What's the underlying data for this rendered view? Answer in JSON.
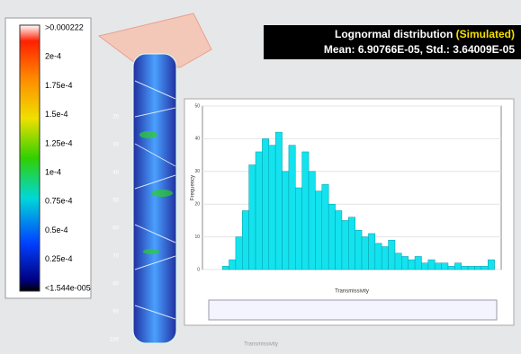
{
  "legend": {
    "labels": [
      ">0.000222",
      "2e-4",
      "1.75e-4",
      "1.5e-4",
      "1.25e-4",
      "1e-4",
      "0.75e-4",
      "0.5e-4",
      "0.25e-4",
      "<1.544e-005"
    ]
  },
  "banner": {
    "title": "Lognormal distribution ",
    "highlight": "(Simulated)",
    "stats": "Mean: 6.90766E-05, Std.: 3.64009E-05"
  },
  "depth_labels": [
    "20",
    "30",
    "40",
    "50",
    "60",
    "70",
    "80",
    "90",
    "100"
  ],
  "footer": "Transmissivity",
  "chart_data": {
    "type": "histogram",
    "x_label": "Transmissivity",
    "y_label": "Frequency",
    "color": "#13e3ee",
    "bins": [
      1.5e-05,
      2e-05,
      2.5e-05,
      3e-05,
      3.5e-05,
      4e-05,
      4.5e-05,
      5e-05,
      5.5e-05,
      6e-05,
      6.5e-05,
      7e-05,
      7.5e-05,
      8e-05,
      8.5e-05,
      9e-05,
      9.5e-05,
      0.0001,
      0.000105,
      0.00011,
      0.000115,
      0.00012,
      0.000125,
      0.00013,
      0.000135,
      0.00014,
      0.000145,
      0.00015,
      0.000155,
      0.00016,
      0.000165,
      0.00017,
      0.000175,
      0.00018,
      0.000185,
      0.00019,
      0.000195,
      0.0002,
      0.000205,
      0.00021,
      0.000215,
      0.00022
    ],
    "counts": [
      1,
      3,
      10,
      18,
      32,
      36,
      40,
      38,
      42,
      30,
      38,
      25,
      36,
      30,
      24,
      26,
      20,
      18,
      15,
      16,
      12,
      10,
      11,
      8,
      7,
      9,
      5,
      4,
      3,
      4,
      2,
      3,
      2,
      2,
      1,
      2,
      1,
      1,
      1,
      1,
      3
    ],
    "xlim": [
      0,
      0.000225
    ],
    "ylim": [
      0,
      50
    ],
    "yticks": [
      0,
      10,
      20,
      30,
      40,
      50
    ],
    "grid": true
  }
}
